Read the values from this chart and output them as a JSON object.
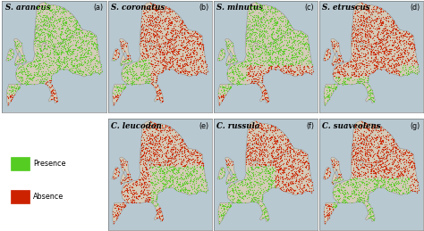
{
  "figsize": [
    4.74,
    2.59
  ],
  "dpi": 100,
  "bg_color": "#ffffff",
  "sea_color": "#b8c8d0",
  "land_bg": "#d8d0c0",
  "presence_color": "#55cc22",
  "absence_color": "#cc2200",
  "title_fontsize": 6.2,
  "label_fontsize": 5.8,
  "panel_labels": [
    "(a)",
    "(b)",
    "(c)",
    "(d)",
    "(e)",
    "(f)",
    "(g)"
  ],
  "species_names": [
    "S. araneus",
    "S. coronatus",
    "S. minutus",
    "S. etruscus",
    "C. leucodon",
    "C. russula",
    "C. suaveolens"
  ],
  "legend_labels": [
    "Presence",
    "Absence"
  ],
  "legend_colors": [
    "#55cc22",
    "#cc2200"
  ]
}
